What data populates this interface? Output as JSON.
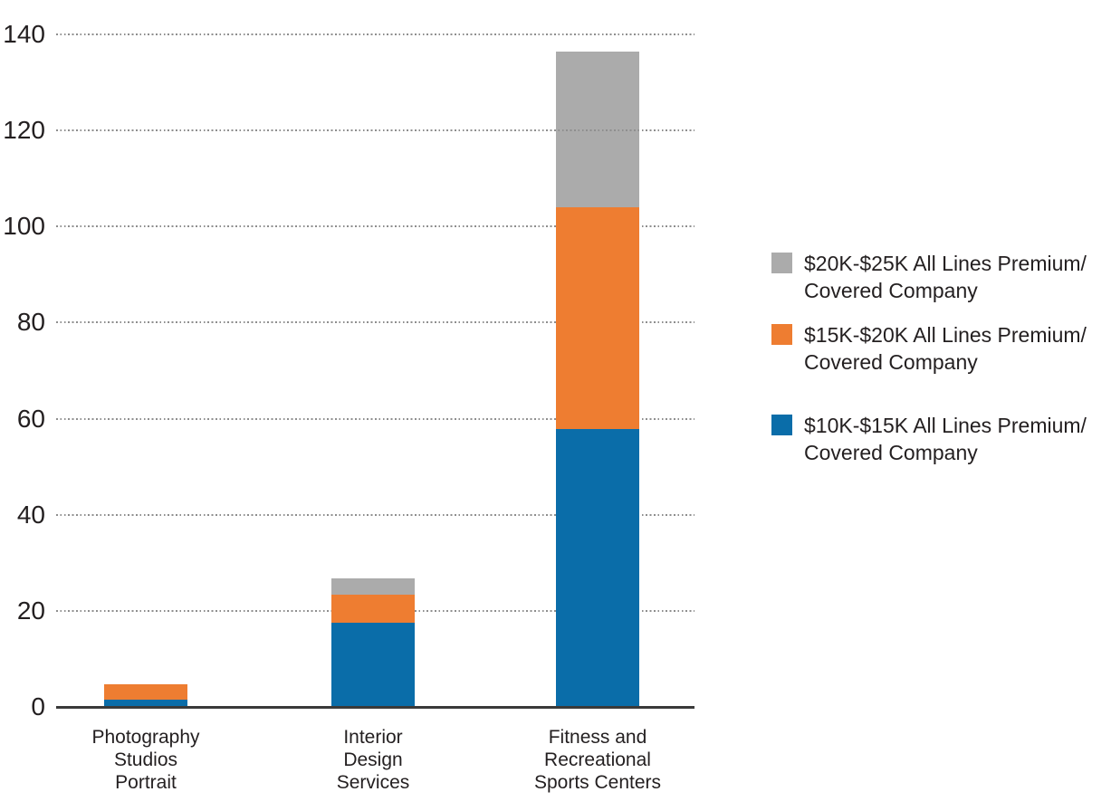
{
  "chart_data": {
    "type": "bar",
    "stacked": true,
    "title": "",
    "xlabel": "",
    "ylabel": "",
    "categories": [
      "Photography Studios Portrait",
      "Interior Design Services",
      "Fitness and Recreational Sports Centers"
    ],
    "category_labels_lines": [
      [
        "Photography",
        "Studios",
        "Portrait"
      ],
      [
        "Interior",
        "Design",
        "Services"
      ],
      [
        "Fitness and",
        "Recreational",
        "Sports Centers"
      ]
    ],
    "series": [
      {
        "name": "$10K-$15K All Lines Premium/Covered Company",
        "color": "#0a6da9",
        "values": [
          1.5,
          17.5,
          57.8
        ]
      },
      {
        "name": "$15K-$20K All Lines Premium/Covered Company",
        "color": "#ee7d31",
        "values": [
          3.2,
          5.9,
          46.2
        ]
      },
      {
        "name": "$20K-$25K All Lines Premium/Covered Company",
        "color": "#ababab",
        "values": [
          0,
          3.4,
          32.4
        ]
      }
    ],
    "totals": [
      4.7,
      26.8,
      136.4
    ],
    "ylim": [
      0,
      140
    ],
    "ytick_labels": [
      "140",
      "120",
      "100",
      "80",
      "60",
      "40",
      "20",
      "0"
    ],
    "grid": "horizontal dotted",
    "legend_position": "right",
    "legend": [
      {
        "color": "#ababab",
        "lines": [
          "$20K-$25K All Lines Premium/",
          "Covered Company"
        ]
      },
      {
        "color": "#ee7d31",
        "lines": [
          "$15K-$20K All Lines Premium/",
          "Covered Company"
        ]
      },
      {
        "color": "#0a6da9",
        "lines": [
          "$10K-$15K All Lines Premium/",
          "Covered Company"
        ]
      }
    ],
    "colors": {
      "axis_line": "#3a3a3a",
      "gridline": "#8e8e8e",
      "text": "#231f20",
      "background": "#ffffff"
    }
  }
}
